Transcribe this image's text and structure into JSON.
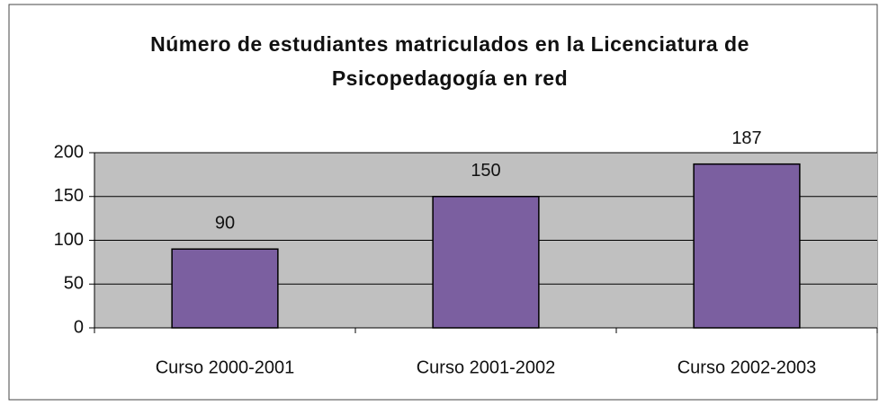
{
  "chart_data": {
    "type": "bar",
    "title": "Número de estudiantes matriculados en la Licenciatura de Psicopedagogía en red",
    "categories": [
      "Curso 2000-2001",
      "Curso 2001-2002",
      "Curso 2002-2003"
    ],
    "values": [
      90,
      150,
      187
    ],
    "color": "#7b5fa0",
    "ylim": [
      0,
      200
    ],
    "yticks": [
      0,
      50,
      100,
      150,
      200
    ],
    "grid": true
  }
}
